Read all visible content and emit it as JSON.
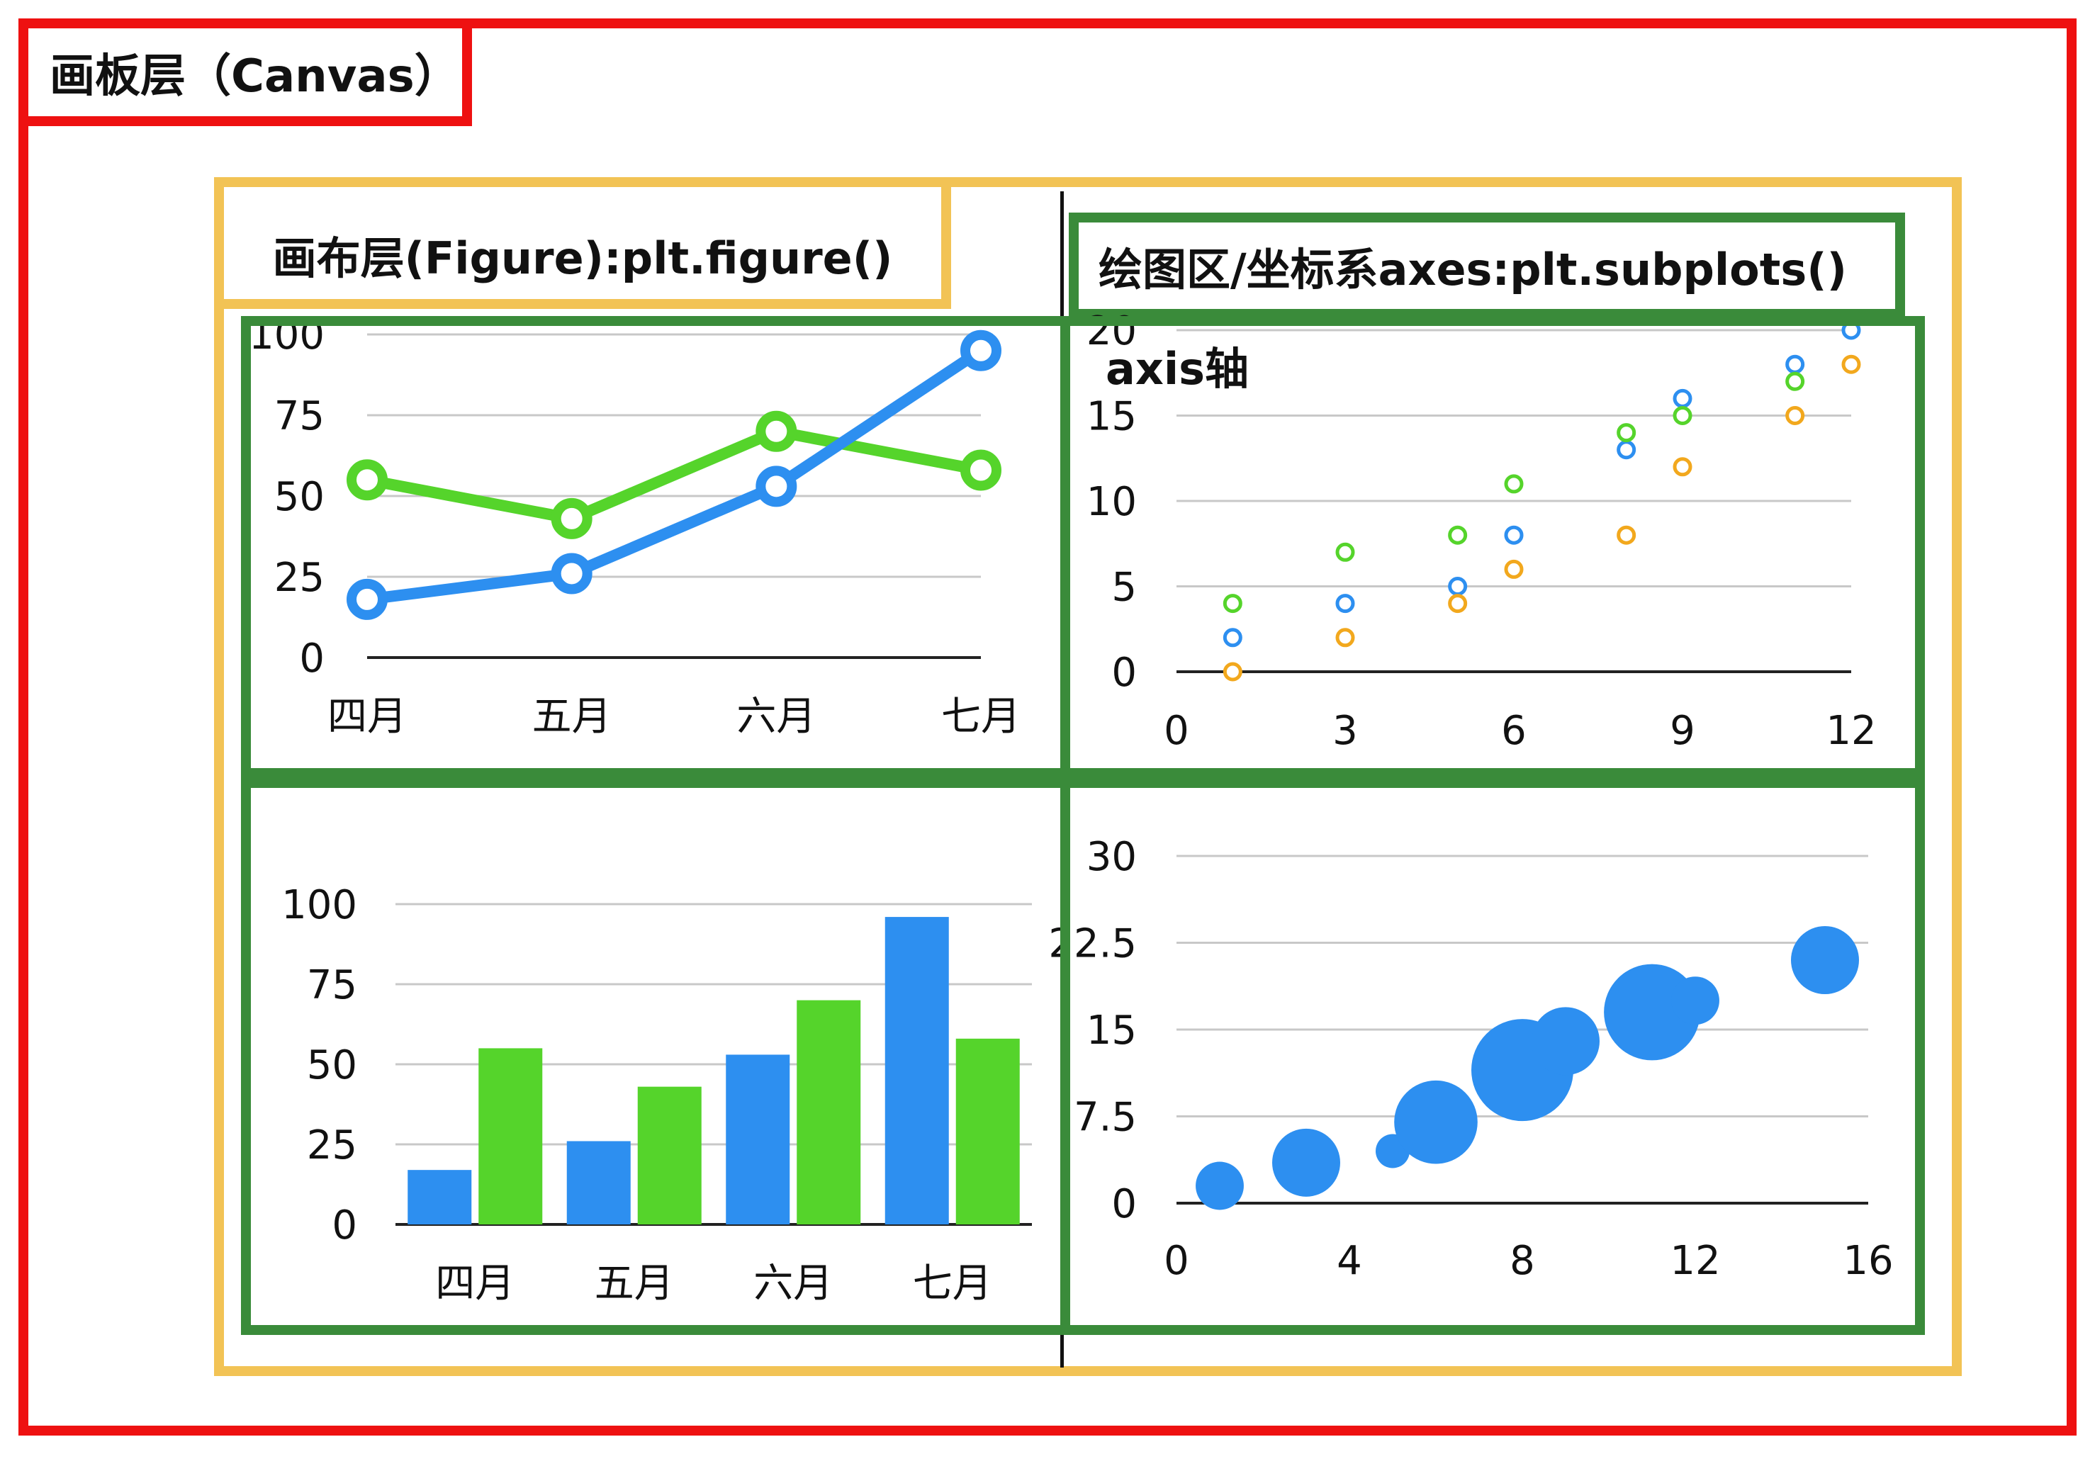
{
  "labels": {
    "canvas": "画板层（Canvas）",
    "figure": "画布层(Figure):plt.figure()",
    "axes": "绘图区/坐标系axes:plt.subplots()",
    "axis": "axis轴"
  },
  "colors": {
    "canvas_border": "#ee1111",
    "figure_border": "#f2c355",
    "axes_border": "#3a8b3a",
    "blue": "#2d8ff0",
    "green": "#55d42b",
    "orange": "#f2a81d"
  },
  "chart_data": [
    {
      "type": "line",
      "categories": [
        "四月",
        "五月",
        "六月",
        "七月"
      ],
      "series": [
        {
          "values": [
            18,
            26,
            53,
            95
          ]
        },
        {
          "values": [
            55,
            43,
            70,
            58
          ]
        }
      ],
      "yticks": [
        "0",
        "25",
        "50",
        "75",
        "100"
      ],
      "ylim": [
        0,
        100
      ],
      "grid": true
    },
    {
      "type": "scatter",
      "series": [
        {
          "points": [
            [
              1,
              2
            ],
            [
              3,
              4
            ],
            [
              5,
              5
            ],
            [
              6,
              8
            ],
            [
              8,
              13
            ],
            [
              9,
              16
            ],
            [
              11,
              18
            ],
            [
              12,
              20
            ]
          ]
        },
        {
          "points": [
            [
              1,
              4
            ],
            [
              3,
              7
            ],
            [
              5,
              8
            ],
            [
              6,
              11
            ],
            [
              8,
              14
            ],
            [
              9,
              15
            ],
            [
              11,
              17
            ]
          ]
        },
        {
          "points": [
            [
              1,
              0
            ],
            [
              3,
              2
            ],
            [
              5,
              4
            ],
            [
              6,
              6
            ],
            [
              8,
              8
            ],
            [
              9,
              12
            ],
            [
              11,
              15
            ],
            [
              12,
              18
            ]
          ]
        }
      ],
      "xticks": [
        "0",
        "3",
        "6",
        "9",
        "12"
      ],
      "yticks": [
        "0",
        "5",
        "10",
        "15",
        "20"
      ],
      "xlim": [
        0,
        12
      ],
      "ylim": [
        0,
        20
      ],
      "grid": true
    },
    {
      "type": "bar",
      "categories": [
        "四月",
        "五月",
        "六月",
        "七月"
      ],
      "series": [
        {
          "values": [
            17,
            26,
            53,
            96
          ]
        },
        {
          "values": [
            55,
            43,
            70,
            58
          ]
        }
      ],
      "yticks": [
        "0",
        "25",
        "50",
        "75",
        "100"
      ],
      "ylim": [
        0,
        100
      ],
      "grid": true
    },
    {
      "type": "scatter",
      "bubble": true,
      "points": [
        {
          "x": 1,
          "y": 1.5,
          "size": 2
        },
        {
          "x": 3,
          "y": 3.5,
          "size": 4
        },
        {
          "x": 5,
          "y": 4.5,
          "size": 1
        },
        {
          "x": 6,
          "y": 7,
          "size": 6
        },
        {
          "x": 8,
          "y": 11.5,
          "size": 9
        },
        {
          "x": 9,
          "y": 14,
          "size": 4
        },
        {
          "x": 11,
          "y": 16.5,
          "size": 8
        },
        {
          "x": 12,
          "y": 17.5,
          "size": 2
        },
        {
          "x": 15,
          "y": 21,
          "size": 4
        }
      ],
      "xticks": [
        "0",
        "4",
        "8",
        "12",
        "16"
      ],
      "yticks": [
        "0",
        "7.5",
        "15",
        "22.5",
        "30"
      ],
      "xlim": [
        0,
        16
      ],
      "ylim": [
        0,
        30
      ],
      "grid": true
    }
  ]
}
